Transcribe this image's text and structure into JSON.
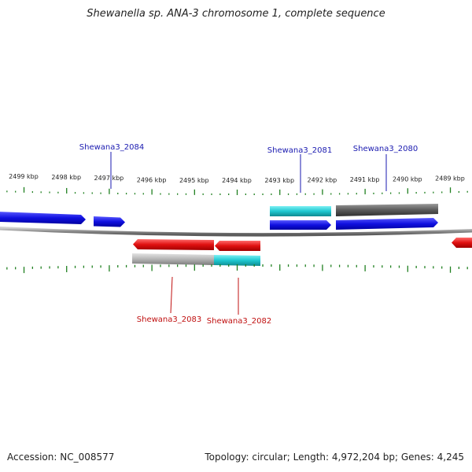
{
  "title": "Shewanella sp. ANA-3 chromosome 1, complete sequence",
  "footer": {
    "accession": "Accession: NC_008577",
    "summary": "Topology: circular; Length: 4,972,204 bp; Genes: 4,245"
  },
  "colors": {
    "plus_gene": "#1010e0",
    "minus_gene": "#e01010",
    "cyan_feature": "#1ec8d0",
    "dark_feature": "#5a5a5a",
    "light_feature": "#b4b4b4",
    "tick": "#208020",
    "backbone": "#8a8a8a",
    "plus_label": "#1a1ab0",
    "minus_label": "#c01010"
  },
  "ticks": [
    {
      "label": "2499 kbp"
    },
    {
      "label": "2498 kbp"
    },
    {
      "label": "2497 kbp"
    },
    {
      "label": "2496 kbp"
    },
    {
      "label": "2495 kbp"
    },
    {
      "label": "2494 kbp"
    },
    {
      "label": "2493 kbp"
    },
    {
      "label": "2492 kbp"
    },
    {
      "label": "2491 kbp"
    },
    {
      "label": "2490 kbp"
    },
    {
      "label": "2489 kbp"
    }
  ],
  "gene_labels": [
    {
      "name": "Shewana3_2084",
      "strand": "plus"
    },
    {
      "name": "Shewana3_2081",
      "strand": "plus"
    },
    {
      "name": "Shewana3_2080",
      "strand": "plus"
    },
    {
      "name": "Shewana3_2083",
      "strand": "minus"
    },
    {
      "name": "Shewana3_2082",
      "strand": "minus"
    }
  ]
}
